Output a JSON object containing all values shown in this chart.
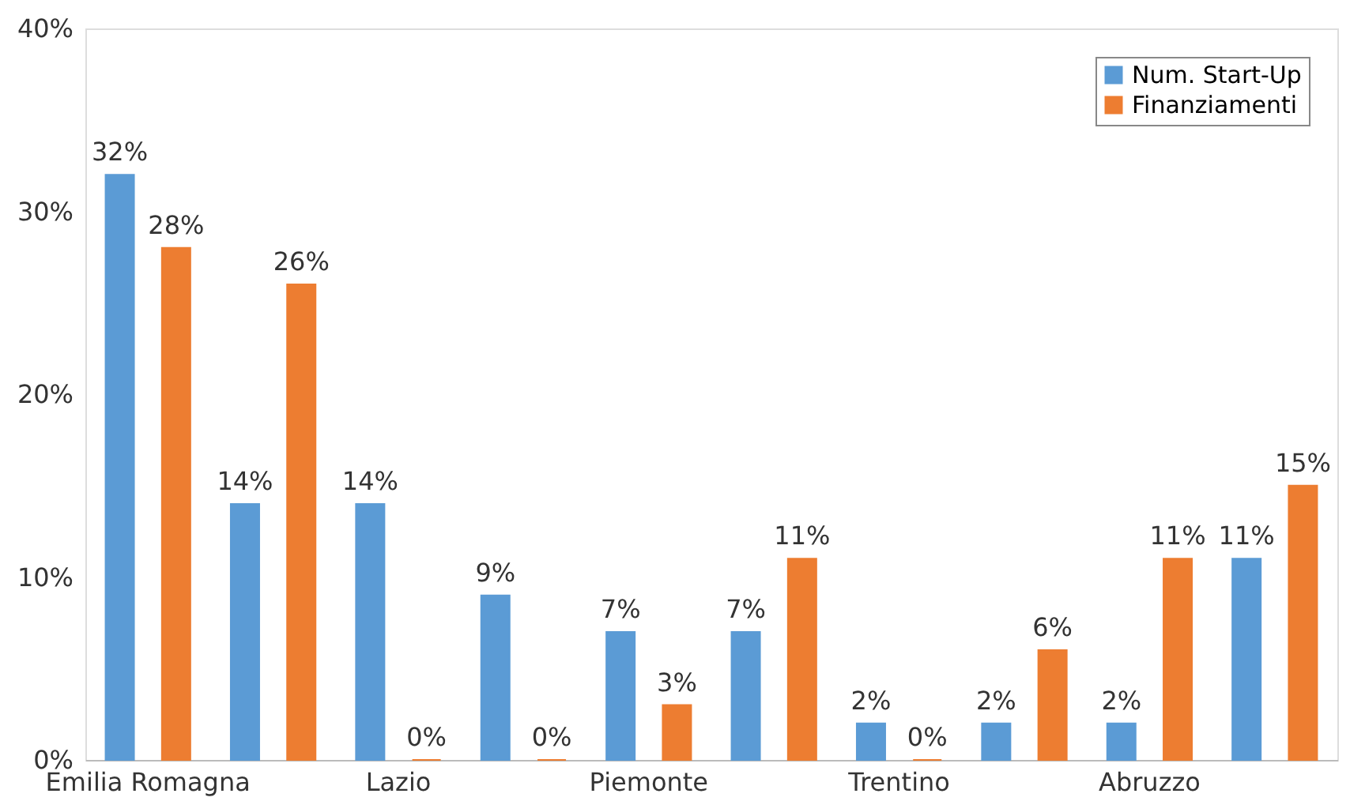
{
  "chart_data": {
    "type": "bar",
    "categories": [
      "Emilia Romagna",
      null,
      "Lazio",
      null,
      "Piemonte",
      null,
      "Trentino",
      null,
      "Abruzzo",
      null
    ],
    "series": [
      {
        "name": "Num. Start-Up",
        "color": "#5b9bd5",
        "values": [
          32,
          14,
          14,
          9,
          7,
          7,
          2,
          2,
          2,
          11
        ],
        "value_labels": [
          "32%",
          "14%",
          "14%",
          "9%",
          "7%",
          "7%",
          "2%",
          "2%",
          "2%",
          "11%"
        ]
      },
      {
        "name": "Finanziamenti",
        "color": "#ed7d31",
        "values": [
          28,
          26,
          0,
          0,
          3,
          11,
          0,
          6,
          11,
          15
        ],
        "value_labels": [
          "28%",
          "26%",
          "0%",
          "0%",
          "3%",
          "11%",
          "0%",
          "6%",
          "11%",
          "15%"
        ]
      }
    ],
    "ylim": [
      0,
      40
    ],
    "yticks": [
      {
        "value": 0,
        "label": "0%"
      },
      {
        "value": 10,
        "label": "10%"
      },
      {
        "value": 20,
        "label": "20%"
      },
      {
        "value": 30,
        "label": "30%"
      },
      {
        "value": 40,
        "label": "40%"
      }
    ],
    "grid": false,
    "legend": "top right"
  }
}
